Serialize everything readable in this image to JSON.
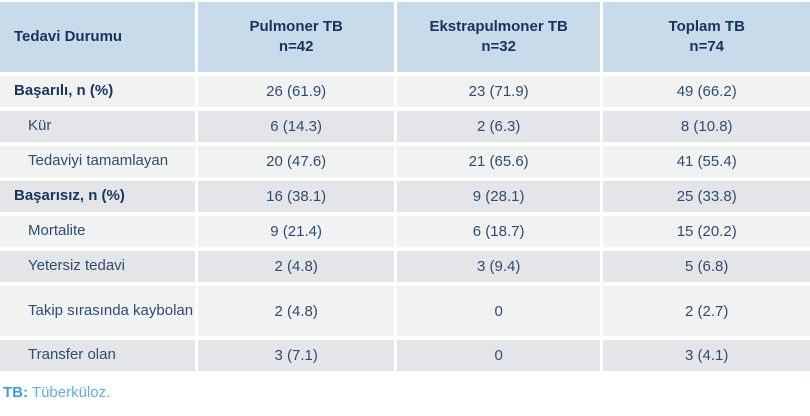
{
  "table": {
    "header": {
      "row_header": "Tedavi Durumu",
      "columns": [
        {
          "title": "Pulmoner TB",
          "n": "n=42"
        },
        {
          "title": "Ekstrapulmoner TB",
          "n": "n=32"
        },
        {
          "title": "Toplam TB",
          "n": "n=74"
        }
      ]
    },
    "rows": [
      {
        "label": "Başarılı, n (%)",
        "level": "category",
        "values": [
          "26 (61.9)",
          "23 (71.9)",
          "49 (66.2)"
        ]
      },
      {
        "label": "Kür",
        "level": "sub",
        "values": [
          "6 (14.3)",
          "2 (6.3)",
          "8 (10.8)"
        ]
      },
      {
        "label": "Tedaviyi tamamlayan",
        "level": "sub",
        "values": [
          "20 (47.6)",
          "21 (65.6)",
          "41 (55.4)"
        ]
      },
      {
        "label": "Başarısız, n (%)",
        "level": "category",
        "values": [
          "16 (38.1)",
          "9 (28.1)",
          "25 (33.8)"
        ]
      },
      {
        "label": "Mortalite",
        "level": "sub",
        "values": [
          "9 (21.4)",
          "6 (18.7)",
          "15 (20.2)"
        ]
      },
      {
        "label": "Yetersiz tedavi",
        "level": "sub",
        "values": [
          "2 (4.8)",
          "3 (9.4)",
          "5 (6.8)"
        ]
      },
      {
        "label": "Takip sırasında kaybolan",
        "level": "sub",
        "values": [
          "2 (4.8)",
          "0",
          "2 (2.7)"
        ]
      },
      {
        "label": "Transfer olan",
        "level": "sub",
        "values": [
          "3 (7.1)",
          "0",
          "3 (4.1)"
        ]
      }
    ],
    "footnote": {
      "abbr": "TB:",
      "expansion": "Tüberküloz."
    },
    "colors": {
      "header_bg": "#c8dbea",
      "row_light_bg": "#f1f2f2",
      "row_dark_bg": "#e4e5e8",
      "header_text": "#17355c",
      "body_text": "#2f4d6f",
      "footnote_abbr": "#3f9fd3",
      "footnote_text": "#62afda"
    }
  }
}
